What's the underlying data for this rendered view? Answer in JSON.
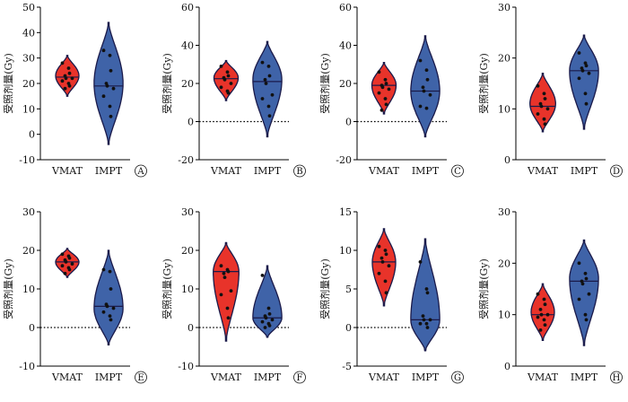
{
  "figure": {
    "ylabel": "受照剂量(Gy)"
  },
  "colors": {
    "vmat_fill": "#e8332a",
    "impt_fill": "#3f63a8",
    "outline": "#1a1a4a",
    "point": "#111111"
  },
  "chart_data": [
    {
      "panel": "A",
      "type": "violin",
      "categories": [
        "VMAT",
        "IMPT"
      ],
      "ylabel": "受照剂量(Gy)",
      "ylim": [
        -10,
        50
      ],
      "yticks": [
        -10,
        0,
        10,
        20,
        30,
        40,
        50
      ],
      "zero_line": false,
      "series": [
        {
          "name": "VMAT",
          "range": [
            15,
            31
          ],
          "median": 22.5,
          "bulge": 23,
          "width": 0.5,
          "points": [
            28,
            26,
            24,
            23,
            22,
            22,
            21,
            20,
            19,
            18
          ]
        },
        {
          "name": "IMPT",
          "range": [
            -4,
            44
          ],
          "median": 19,
          "bulge": 20,
          "width": 0.62,
          "points": [
            33,
            31,
            25,
            20,
            19,
            18,
            15,
            11,
            7
          ]
        }
      ]
    },
    {
      "panel": "B",
      "type": "violin",
      "categories": [
        "VMAT",
        "IMPT"
      ],
      "ylabel": "受照剂量(Gy)",
      "ylim": [
        -20,
        60
      ],
      "yticks": [
        -20,
        0,
        20,
        40,
        60
      ],
      "zero_line": true,
      "series": [
        {
          "name": "VMAT",
          "range": [
            11,
            32
          ],
          "median": 22.5,
          "bulge": 23,
          "width": 0.52,
          "points": [
            29,
            26,
            24,
            23,
            22,
            20,
            18,
            16,
            15
          ]
        },
        {
          "name": "IMPT",
          "range": [
            -8,
            42
          ],
          "median": 21,
          "bulge": 22,
          "width": 0.62,
          "points": [
            31,
            29,
            24,
            22,
            20,
            14,
            12,
            8,
            3
          ]
        }
      ]
    },
    {
      "panel": "C",
      "type": "violin",
      "categories": [
        "VMAT",
        "IMPT"
      ],
      "ylabel": "受照剂量(Gy)",
      "ylim": [
        -20,
        60
      ],
      "yticks": [
        -20,
        0,
        20,
        40,
        60
      ],
      "zero_line": true,
      "series": [
        {
          "name": "VMAT",
          "range": [
            4,
            31
          ],
          "median": 19,
          "bulge": 19,
          "width": 0.52,
          "points": [
            26,
            22,
            20,
            19,
            18,
            17,
            15,
            12,
            9,
            6
          ]
        },
        {
          "name": "IMPT",
          "range": [
            -8,
            45
          ],
          "median": 16,
          "bulge": 16,
          "width": 0.62,
          "points": [
            32,
            27,
            22,
            18,
            16,
            14,
            8,
            7
          ]
        }
      ]
    },
    {
      "panel": "D",
      "type": "violin",
      "categories": [
        "VMAT",
        "IMPT"
      ],
      "ylabel": "受照剂量(Gy)",
      "ylim": [
        0,
        30
      ],
      "yticks": [
        0,
        10,
        20,
        30
      ],
      "zero_line": false,
      "series": [
        {
          "name": "VMAT",
          "range": [
            5.5,
            17
          ],
          "median": 10.5,
          "bulge": 11,
          "width": 0.55,
          "points": [
            14.5,
            13,
            12,
            11,
            10.5,
            10,
            9,
            8,
            7
          ]
        },
        {
          "name": "IMPT",
          "range": [
            6,
            24.5
          ],
          "median": 17.5,
          "bulge": 17.5,
          "width": 0.62,
          "points": [
            21,
            19,
            18.5,
            18,
            17.5,
            17,
            16,
            13,
            11
          ]
        }
      ]
    },
    {
      "panel": "E",
      "type": "violin",
      "categories": [
        "VMAT",
        "IMPT"
      ],
      "ylabel": "受照剂量(Gy)",
      "ylim": [
        -10,
        30
      ],
      "yticks": [
        -10,
        0,
        10,
        20,
        30
      ],
      "zero_line": true,
      "series": [
        {
          "name": "VMAT",
          "range": [
            13,
            20.5
          ],
          "median": 17,
          "bulge": 17,
          "width": 0.5,
          "points": [
            19,
            18.5,
            18,
            17.5,
            17,
            16.5,
            16,
            15.5,
            15,
            14
          ]
        },
        {
          "name": "IMPT",
          "range": [
            -4.5,
            20
          ],
          "median": 5.5,
          "bulge": 5,
          "width": 0.62,
          "points": [
            15,
            14.5,
            10,
            6,
            5.5,
            5,
            4,
            3,
            2
          ]
        }
      ]
    },
    {
      "panel": "F",
      "type": "violin",
      "categories": [
        "VMAT",
        "IMPT"
      ],
      "ylabel": "受照剂量(Gy)",
      "ylim": [
        -10,
        30
      ],
      "yticks": [
        -10,
        0,
        10,
        20,
        30
      ],
      "zero_line": true,
      "series": [
        {
          "name": "VMAT",
          "range": [
            -3.5,
            22
          ],
          "median": 14.5,
          "bulge": 14.5,
          "width": 0.55,
          "points": [
            16,
            15,
            14.5,
            14,
            13,
            9.5,
            8.5,
            5,
            2.5
          ]
        },
        {
          "name": "IMPT",
          "range": [
            -2.5,
            16
          ],
          "median": 2.5,
          "bulge": 2.5,
          "width": 0.62,
          "points": [
            13.5,
            5,
            3.5,
            3,
            2.5,
            2,
            1.5,
            1,
            0.5,
            0
          ]
        }
      ]
    },
    {
      "panel": "G",
      "type": "violin",
      "categories": [
        "VMAT",
        "IMPT"
      ],
      "ylabel": "受照剂量(Gy)",
      "ylim": [
        -5,
        15
      ],
      "yticks": [
        -5,
        0,
        5,
        10,
        15
      ],
      "zero_line": true,
      "series": [
        {
          "name": "VMAT",
          "range": [
            2.8,
            12.8
          ],
          "median": 8.5,
          "bulge": 8.5,
          "width": 0.5,
          "points": [
            10.5,
            10,
            9.5,
            9,
            8.5,
            8,
            7,
            6,
            4.5
          ]
        },
        {
          "name": "IMPT",
          "range": [
            -3,
            11.5
          ],
          "median": 1,
          "bulge": 1,
          "width": 0.62,
          "points": [
            8.5,
            5,
            4.5,
            1.5,
            1,
            1,
            0.5,
            0.5,
            0
          ]
        }
      ]
    },
    {
      "panel": "H",
      "type": "violin",
      "categories": [
        "VMAT",
        "IMPT"
      ],
      "ylabel": "受照剂量(Gy)",
      "ylim": [
        0,
        30
      ],
      "yticks": [
        0,
        10,
        20,
        30
      ],
      "zero_line": false,
      "series": [
        {
          "name": "VMAT",
          "range": [
            5,
            16
          ],
          "median": 10,
          "bulge": 10.5,
          "width": 0.5,
          "points": [
            14,
            13,
            12,
            11,
            10,
            10,
            9.5,
            9,
            8,
            7
          ]
        },
        {
          "name": "IMPT",
          "range": [
            4,
            24.5
          ],
          "median": 16.5,
          "bulge": 17,
          "width": 0.62,
          "points": [
            20,
            18,
            17,
            16.5,
            16,
            14,
            13,
            10,
            9
          ]
        }
      ]
    }
  ]
}
